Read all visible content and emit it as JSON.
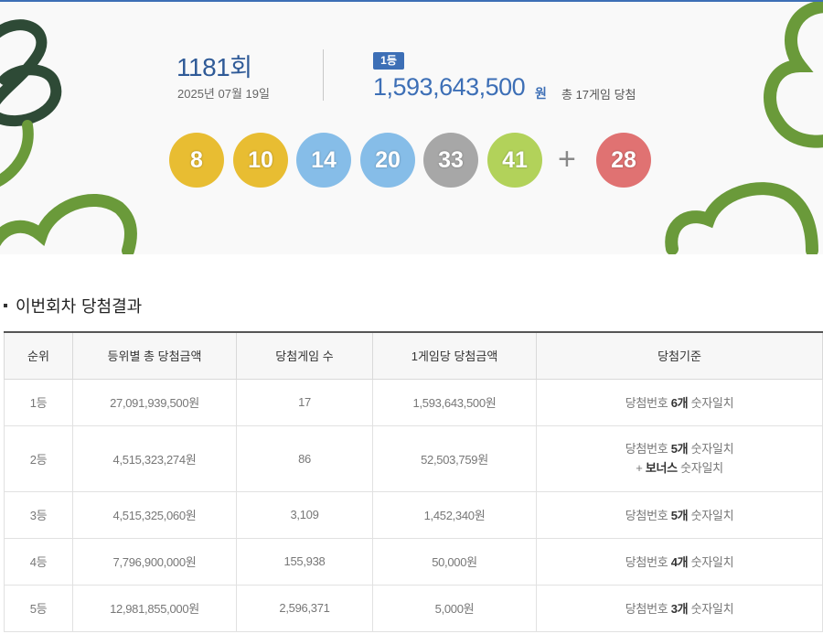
{
  "draw": {
    "number": "1181",
    "number_unit": "회",
    "date": "2025년 07월 19일"
  },
  "first_prize": {
    "badge": "1등",
    "amount": "1,593,643,500",
    "unit": "원",
    "winners_text": "총 17게임 당첨"
  },
  "balls": [
    {
      "value": "8",
      "color": "#e8bd32"
    },
    {
      "value": "10",
      "color": "#e8bd32"
    },
    {
      "value": "14",
      "color": "#86bde8"
    },
    {
      "value": "20",
      "color": "#86bde8"
    },
    {
      "value": "33",
      "color": "#a7a7a7"
    },
    {
      "value": "41",
      "color": "#b2d25a"
    }
  ],
  "plus_symbol": "+",
  "bonus_ball": {
    "value": "28",
    "color": "#e07272"
  },
  "section": {
    "title": "이번회차 당첨결과"
  },
  "table": {
    "headers": [
      "순위",
      "등위별 총 당첨금액",
      "당첨게임 수",
      "1게임당 당첨금액",
      "당첨기준"
    ],
    "rows": [
      {
        "rank": "1등",
        "total": "27,091,939,500원",
        "games": "17",
        "per_game": "1,593,643,500원",
        "criteria_pre": "당첨번호 ",
        "criteria_count": "6개",
        "criteria_post": " 숫자일치",
        "bonus_pre": "",
        "bonus_bold": "",
        "bonus_post": ""
      },
      {
        "rank": "2등",
        "total": "4,515,323,274원",
        "games": "86",
        "per_game": "52,503,759원",
        "criteria_pre": "당첨번호 ",
        "criteria_count": "5개",
        "criteria_post": " 숫자일치",
        "bonus_pre": "+ ",
        "bonus_bold": "보너스",
        "bonus_post": " 숫자일치"
      },
      {
        "rank": "3등",
        "total": "4,515,325,060원",
        "games": "3,109",
        "per_game": "1,452,340원",
        "criteria_pre": "당첨번호 ",
        "criteria_count": "5개",
        "criteria_post": " 숫자일치",
        "bonus_pre": "",
        "bonus_bold": "",
        "bonus_post": ""
      },
      {
        "rank": "4등",
        "total": "7,796,900,000원",
        "games": "155,938",
        "per_game": "50,000원",
        "criteria_pre": "당첨번호 ",
        "criteria_count": "4개",
        "criteria_post": " 숫자일치",
        "bonus_pre": "",
        "bonus_bold": "",
        "bonus_post": ""
      },
      {
        "rank": "5등",
        "total": "12,981,855,000원",
        "games": "2,596,371",
        "per_game": "5,000원",
        "criteria_pre": "당첨번호 ",
        "criteria_count": "3개",
        "criteria_post": " 숫자일치",
        "bonus_pre": "",
        "bonus_bold": "",
        "bonus_post": ""
      }
    ]
  },
  "colors": {
    "accent": "#3d6fb6",
    "deco_dark": "#2e4a36",
    "deco_green": "#6a9a3a"
  }
}
